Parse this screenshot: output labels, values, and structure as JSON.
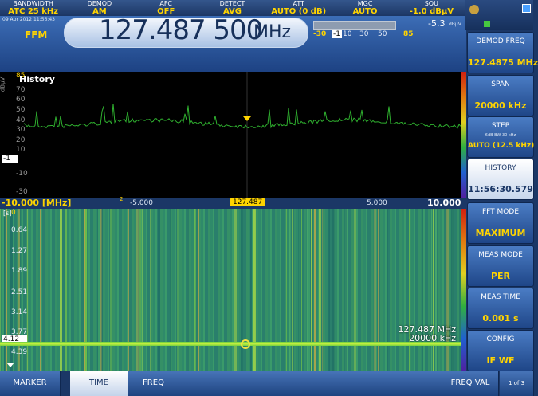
{
  "header": {
    "cells": [
      {
        "label": "BANDWIDTH",
        "value": "ATC 25 kHz"
      },
      {
        "label": "DEMOD",
        "value": "AM"
      },
      {
        "label": "AFC",
        "value": "OFF"
      },
      {
        "label": "DETECT",
        "value": "AVG"
      },
      {
        "label": "ATT",
        "value": "AUTO (0 dB)"
      },
      {
        "label": "MGC",
        "value": "AUTO"
      },
      {
        "label": "SQU",
        "value": "-1.0 dBµV"
      }
    ]
  },
  "display": {
    "date": "09 Apr 2012 11:56:43",
    "mode": "FFM",
    "frequency": "127.487 500",
    "frequency_unit": "MHz"
  },
  "level": {
    "value": "-5.3",
    "unit": "dBµV",
    "scale": [
      "-30",
      "-1",
      "10",
      "30",
      "50",
      "85"
    ]
  },
  "softkeys": [
    {
      "label": "DEMOD FREQ",
      "value": "127.4875 MHz"
    },
    {
      "label": "SPAN",
      "value": "20000 kHz"
    },
    {
      "label": "STEP",
      "sub": "6dB BW  30 kHz",
      "value": "AUTO (12.5 kHz)"
    },
    {
      "label": "HISTORY",
      "value": "11:56:30.579"
    },
    {
      "label": "FFT MODE",
      "value": "MAXIMUM"
    },
    {
      "label": "MEAS MODE",
      "value": "PER"
    },
    {
      "label": "MEAS TIME",
      "value": "0.001 s"
    },
    {
      "label": "CONFIG",
      "value": "IF WF"
    }
  ],
  "spectrum": {
    "title": "History",
    "unit": "dBµV",
    "y_labels": [
      "85",
      "70",
      "60",
      "50",
      "40",
      "30",
      "20",
      "10",
      "-1",
      "-10",
      "-30"
    ]
  },
  "freq_axis": {
    "start": "-10.000 [MHz]",
    "marker": "2",
    "left": "-5.000",
    "center": "127.487",
    "right": "5.000",
    "end": "10.000"
  },
  "waterfall": {
    "unit": "[s]",
    "y_labels": [
      "0",
      "0.64",
      "1.27",
      "1.89",
      "2.51",
      "3.14",
      "3.77",
      "4.12",
      "4.39"
    ],
    "annotations": [
      "127.487 MHz",
      "20000 kHz"
    ]
  },
  "menu": {
    "items": [
      "MARKER",
      "TIME",
      "FREQ",
      "",
      "",
      "",
      "",
      "",
      "FREQ VAL"
    ],
    "page": "1 of 3"
  }
}
